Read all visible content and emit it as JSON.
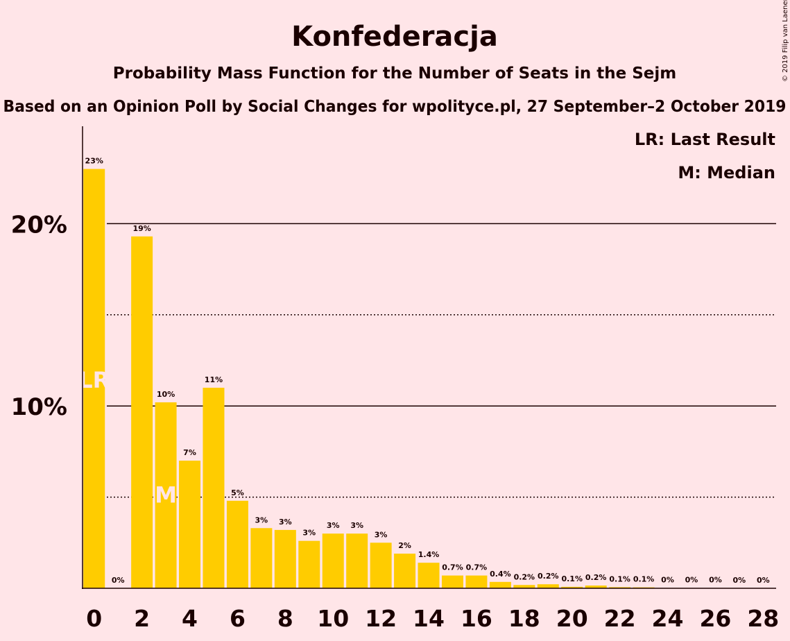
{
  "chart_data": {
    "type": "bar",
    "title": "Konfederacja",
    "subtitle": "Probability Mass Function for the Number of Seats in the Sejm",
    "subtitle2": "Based on an Opinion Poll by Social Changes for wpolityce.pl, 27 September–2 October 2019",
    "copyright": "© 2019 Filip van Laenen",
    "x": [
      0,
      1,
      2,
      3,
      4,
      5,
      6,
      7,
      8,
      9,
      10,
      11,
      12,
      13,
      14,
      15,
      16,
      17,
      18,
      19,
      20,
      21,
      22,
      23,
      24,
      25,
      26,
      27,
      28
    ],
    "values": [
      23.0,
      0,
      19.3,
      10.2,
      7.0,
      11.0,
      4.8,
      3.3,
      3.2,
      2.6,
      3.0,
      3.0,
      2.5,
      1.9,
      1.4,
      0.7,
      0.7,
      0.35,
      0.18,
      0.22,
      0.08,
      0.15,
      0.06,
      0.05,
      0.02,
      0.01,
      0.01,
      0.005,
      0.002
    ],
    "labels": [
      "23%",
      "0%",
      "19%",
      "10%",
      "7%",
      "11%",
      "5%",
      "3%",
      "3%",
      "3%",
      "3%",
      "3%",
      "3%",
      "2%",
      "1.4%",
      "0.7%",
      "0.7%",
      "0.4%",
      "0.2%",
      "0.2%",
      "0.1%",
      "0.2%",
      "0.1%",
      "0.1%",
      "0%",
      "0%",
      "0%",
      "0%",
      "0%"
    ],
    "x_tick_labels": [
      "0",
      "2",
      "4",
      "6",
      "8",
      "10",
      "12",
      "14",
      "16",
      "18",
      "20",
      "22",
      "24",
      "26",
      "28"
    ],
    "y_tick_labels": [
      "10%",
      "20%"
    ],
    "ylim": [
      0,
      25
    ],
    "solid_grid": [
      10,
      20
    ],
    "dotted_grid": [
      5,
      15
    ],
    "last_result_seats": 0,
    "median_seats": 3,
    "last_result_marker": "LR",
    "median_marker": "M",
    "legend": [
      "LR: Last Result",
      "M: Median"
    ],
    "colors": {
      "bar": "#FFCC00",
      "background": "#FFE5E8",
      "text": "#1a0000"
    }
  }
}
